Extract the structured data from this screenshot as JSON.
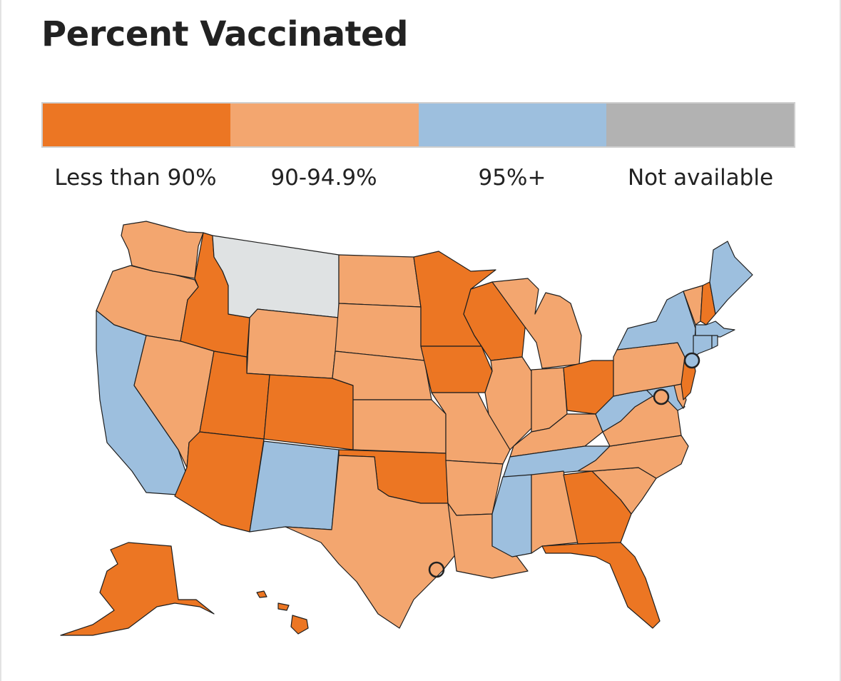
{
  "title": "Percent Vaccinated",
  "legend": [
    {
      "label": "Less than 90%",
      "color": "#ec7623",
      "category": "lt90"
    },
    {
      "label": "90-94.9%",
      "color": "#f3a66f",
      "category": "b90_95"
    },
    {
      "label": "95%+",
      "color": "#9dbfde",
      "category": "gte95"
    },
    {
      "label": "Not available",
      "color": "#b2b2b2",
      "category": "na"
    }
  ],
  "map_colors": {
    "na_fill": "#dfe2e3",
    "stroke": "#1e1e1e"
  },
  "states": [
    {
      "name": "Washington",
      "category": "b90_95"
    },
    {
      "name": "Oregon",
      "category": "b90_95"
    },
    {
      "name": "California",
      "category": "gte95"
    },
    {
      "name": "Idaho",
      "category": "lt90"
    },
    {
      "name": "Nevada",
      "category": "b90_95"
    },
    {
      "name": "Montana",
      "category": "na"
    },
    {
      "name": "Wyoming",
      "category": "b90_95"
    },
    {
      "name": "Utah",
      "category": "lt90"
    },
    {
      "name": "Arizona",
      "category": "lt90"
    },
    {
      "name": "Colorado",
      "category": "lt90"
    },
    {
      "name": "New Mexico",
      "category": "gte95"
    },
    {
      "name": "North Dakota",
      "category": "b90_95"
    },
    {
      "name": "South Dakota",
      "category": "b90_95"
    },
    {
      "name": "Nebraska",
      "category": "b90_95"
    },
    {
      "name": "Kansas",
      "category": "b90_95"
    },
    {
      "name": "Oklahoma",
      "category": "lt90"
    },
    {
      "name": "Texas",
      "category": "b90_95"
    },
    {
      "name": "Minnesota",
      "category": "lt90"
    },
    {
      "name": "Iowa",
      "category": "lt90"
    },
    {
      "name": "Missouri",
      "category": "b90_95"
    },
    {
      "name": "Arkansas",
      "category": "b90_95"
    },
    {
      "name": "Louisiana",
      "category": "b90_95"
    },
    {
      "name": "Wisconsin",
      "category": "lt90"
    },
    {
      "name": "Illinois",
      "category": "b90_95"
    },
    {
      "name": "Michigan",
      "category": "b90_95"
    },
    {
      "name": "Indiana",
      "category": "b90_95"
    },
    {
      "name": "Ohio",
      "category": "lt90"
    },
    {
      "name": "Kentucky",
      "category": "b90_95"
    },
    {
      "name": "Tennessee",
      "category": "gte95"
    },
    {
      "name": "Mississippi",
      "category": "gte95"
    },
    {
      "name": "Alabama",
      "category": "b90_95"
    },
    {
      "name": "Georgia",
      "category": "lt90"
    },
    {
      "name": "Florida",
      "category": "lt90"
    },
    {
      "name": "South Carolina",
      "category": "b90_95"
    },
    {
      "name": "North Carolina",
      "category": "b90_95"
    },
    {
      "name": "Virginia",
      "category": "b90_95"
    },
    {
      "name": "West Virginia",
      "category": "gte95"
    },
    {
      "name": "Maryland",
      "category": "gte95"
    },
    {
      "name": "Delaware",
      "category": "b90_95"
    },
    {
      "name": "New Jersey",
      "category": "lt90"
    },
    {
      "name": "Pennsylvania",
      "category": "b90_95"
    },
    {
      "name": "New York",
      "category": "gte95"
    },
    {
      "name": "Vermont",
      "category": "b90_95"
    },
    {
      "name": "New Hampshire",
      "category": "lt90"
    },
    {
      "name": "Maine",
      "category": "gte95"
    },
    {
      "name": "Massachusetts",
      "category": "gte95"
    },
    {
      "name": "Connecticut",
      "category": "gte95"
    },
    {
      "name": "Rhode Island",
      "category": "gte95"
    },
    {
      "name": "Alaska",
      "category": "lt90"
    },
    {
      "name": "Hawaii",
      "category": "lt90"
    }
  ],
  "cities": [
    {
      "name": "New York City",
      "category": "gte95"
    },
    {
      "name": "Washington, D.C.",
      "category": "b90_95"
    },
    {
      "name": "Houston",
      "category": "na"
    }
  ]
}
